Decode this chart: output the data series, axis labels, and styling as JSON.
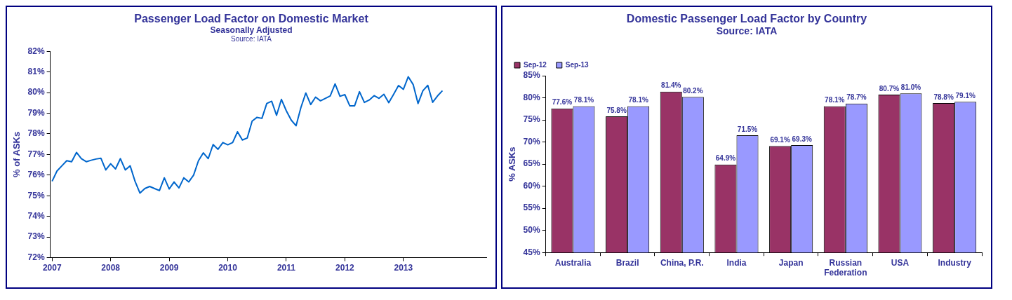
{
  "chart_data": [
    {
      "type": "line",
      "title": "Passenger Load Factor on Domestic Market",
      "subtitle": "Seasonally Adjusted",
      "annotations": [
        "Source: IATA"
      ],
      "ylabel": "% of ASKs",
      "x": [
        "2007-01",
        "2007-02",
        "2007-03",
        "2007-04",
        "2007-05",
        "2007-06",
        "2007-07",
        "2007-08",
        "2007-09",
        "2007-10",
        "2007-11",
        "2007-12",
        "2008-01",
        "2008-02",
        "2008-03",
        "2008-04",
        "2008-05",
        "2008-06",
        "2008-07",
        "2008-08",
        "2008-09",
        "2008-10",
        "2008-11",
        "2008-12",
        "2009-01",
        "2009-02",
        "2009-03",
        "2009-04",
        "2009-05",
        "2009-06",
        "2009-07",
        "2009-08",
        "2009-09",
        "2009-10",
        "2009-11",
        "2009-12",
        "2010-01",
        "2010-02",
        "2010-03",
        "2010-04",
        "2010-05",
        "2010-06",
        "2010-07",
        "2010-08",
        "2010-09",
        "2010-10",
        "2010-11",
        "2010-12",
        "2011-01",
        "2011-02",
        "2011-03",
        "2011-04",
        "2011-05",
        "2011-06",
        "2011-07",
        "2011-08",
        "2011-09",
        "2011-10",
        "2011-11",
        "2011-12",
        "2012-01",
        "2012-02",
        "2012-03",
        "2012-04",
        "2012-05",
        "2012-06",
        "2012-07",
        "2012-08",
        "2012-09",
        "2012-10",
        "2012-11",
        "2012-12",
        "2013-01",
        "2013-02",
        "2013-03",
        "2013-04",
        "2013-05",
        "2013-06",
        "2013-07",
        "2013-08",
        "2013-09"
      ],
      "values": [
        75.7,
        76.2,
        76.45,
        76.7,
        76.65,
        77.1,
        76.8,
        76.65,
        76.72,
        76.78,
        76.82,
        76.25,
        76.55,
        76.3,
        76.8,
        76.25,
        76.45,
        75.7,
        75.13,
        75.35,
        75.45,
        75.35,
        75.25,
        75.87,
        75.33,
        75.67,
        75.38,
        75.87,
        75.67,
        76.0,
        76.7,
        77.08,
        76.8,
        77.48,
        77.25,
        77.58,
        77.47,
        77.58,
        78.1,
        77.7,
        77.8,
        78.62,
        78.8,
        78.75,
        79.47,
        79.58,
        78.9,
        79.67,
        79.12,
        78.67,
        78.39,
        79.28,
        79.98,
        79.42,
        79.78,
        79.6,
        79.72,
        79.84,
        80.42,
        79.82,
        79.9,
        79.36,
        79.36,
        80.04,
        79.52,
        79.64,
        79.85,
        79.72,
        79.92,
        79.51,
        79.92,
        80.34,
        80.16,
        80.77,
        80.39,
        79.47,
        80.09,
        80.35,
        79.53,
        79.84,
        80.09
      ],
      "color": "#0066cc",
      "xlim": [
        "2006-12-20",
        "2014-06"
      ],
      "xticks": [
        "2007",
        "2008",
        "2009",
        "2010",
        "2011",
        "2012",
        "2013"
      ],
      "ylim": [
        72,
        82
      ],
      "yticks": [
        {
          "value": 72,
          "label": "72%"
        },
        {
          "value": 73,
          "label": "73%"
        },
        {
          "value": 74,
          "label": "74%"
        },
        {
          "value": 75,
          "label": "75%"
        },
        {
          "value": 76,
          "label": "76%"
        },
        {
          "value": 77,
          "label": "77%"
        },
        {
          "value": 78,
          "label": "78%"
        },
        {
          "value": 79,
          "label": "79%"
        },
        {
          "value": 80,
          "label": "80%"
        },
        {
          "value": 81,
          "label": "81%"
        },
        {
          "value": 82,
          "label": "82%"
        }
      ],
      "grid": false,
      "legend": false
    },
    {
      "type": "bar",
      "title": "Domestic Passenger Load Factor by Country",
      "subtitle": "Source: IATA",
      "ylabel": "% ASKs",
      "categories": [
        "Australia",
        "Brazil",
        "China, P.R.",
        "India",
        "Japan",
        "Russian Federation",
        "USA",
        "Industry"
      ],
      "series": [
        {
          "name": "Sep-12",
          "color": "#993366",
          "values": [
            77.6,
            75.8,
            81.4,
            64.9,
            69.1,
            78.1,
            80.7,
            78.8
          ],
          "value_labels": [
            "77.6%",
            "75.8%",
            "81.4%",
            "64.9%",
            "69.1%",
            "78.1%",
            "80.7%",
            "78.8%"
          ]
        },
        {
          "name": "Sep-13",
          "color": "#9999ff",
          "values": [
            78.1,
            78.1,
            80.2,
            71.5,
            69.3,
            78.7,
            81.0,
            79.1
          ],
          "value_labels": [
            "78.1%",
            "78.1%",
            "80.2%",
            "71.5%",
            "69.3%",
            "78.7%",
            "81.0%",
            "79.1%"
          ]
        }
      ],
      "ylim": [
        45,
        85
      ],
      "yticks": [
        {
          "value": 45,
          "label": "45%"
        },
        {
          "value": 50,
          "label": "50%"
        },
        {
          "value": 55,
          "label": "55%"
        },
        {
          "value": 60,
          "label": "60%"
        },
        {
          "value": 65,
          "label": "65%"
        },
        {
          "value": 70,
          "label": "70%"
        },
        {
          "value": 75,
          "label": "75%"
        },
        {
          "value": 80,
          "label": "80%"
        },
        {
          "value": 85,
          "label": "85%"
        }
      ],
      "grid": false,
      "legend": "top left"
    }
  ]
}
